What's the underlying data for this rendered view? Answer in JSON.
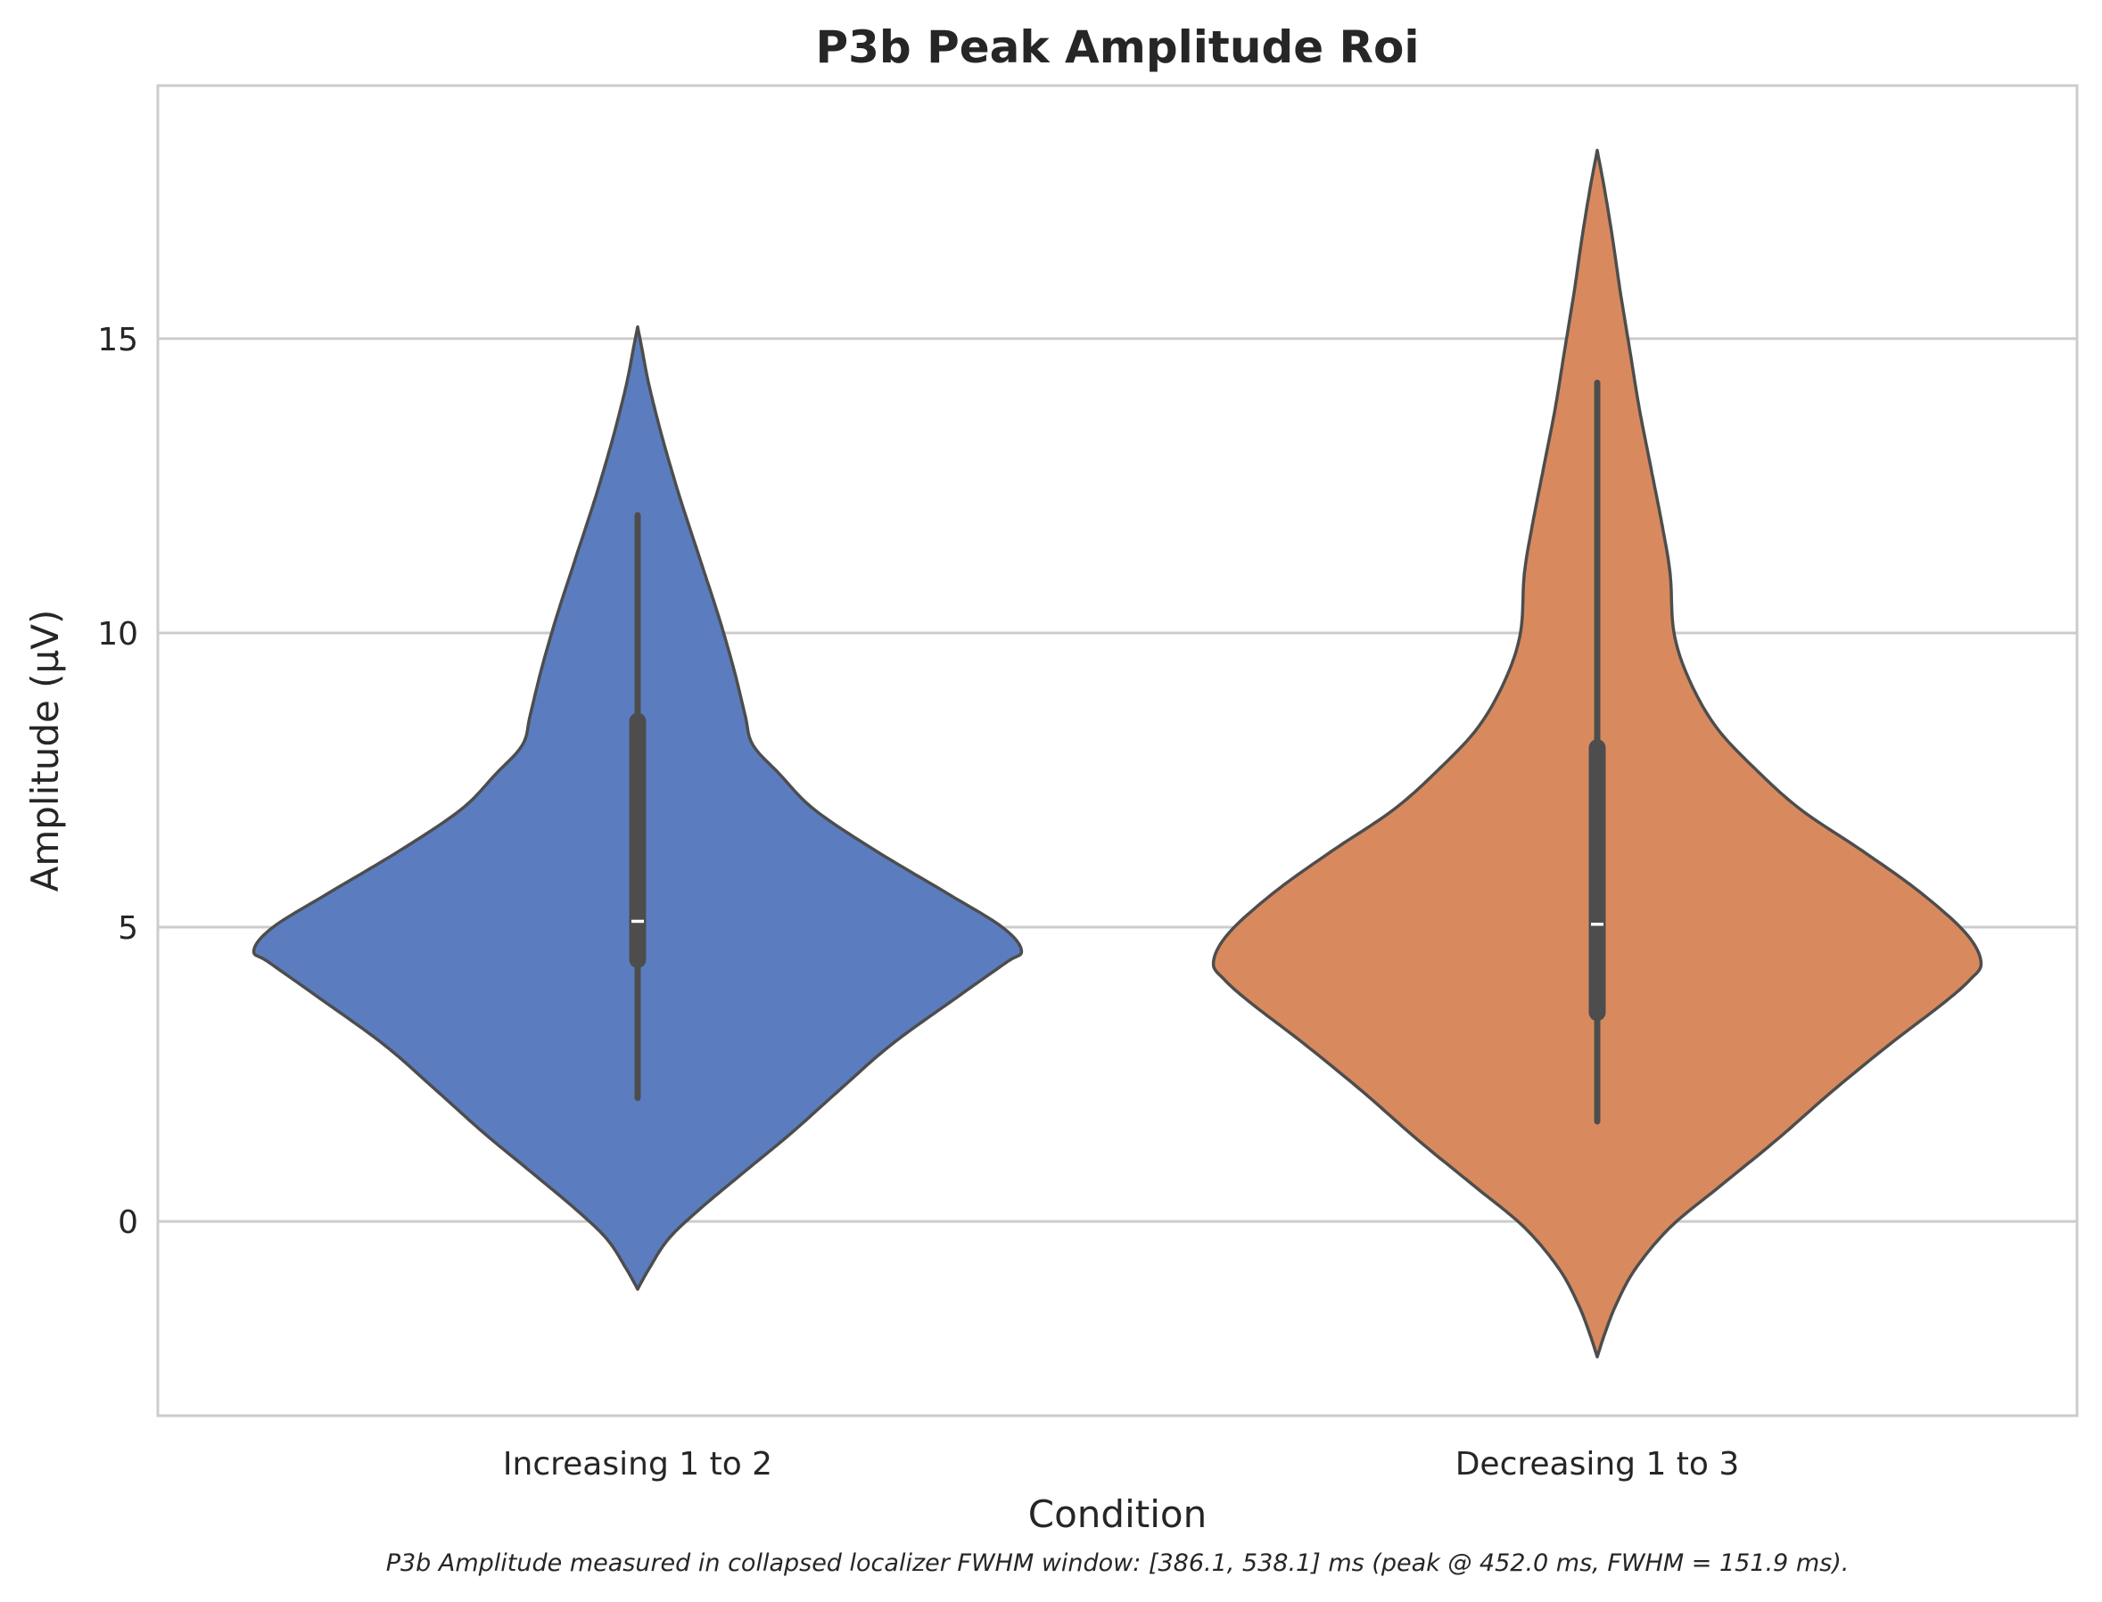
{
  "chart_data": {
    "type": "violin",
    "title": "P3b Peak Amplitude Roi",
    "xlabel": "Condition",
    "ylabel": "Amplitude (μV)",
    "ylim": [
      -3.3,
      19.3
    ],
    "yticks": [
      0,
      5,
      10,
      15
    ],
    "grid": true,
    "caption": "P3b Amplitude measured in collapsed localizer FWHM window: [386.1, 538.1] ms (peak @ 452.0 ms, FWHM = 151.9 ms).",
    "categories": [
      "Increasing 1 to 2",
      "Decreasing 1 to 3"
    ],
    "series": [
      {
        "category": "Increasing 1 to 2",
        "color": "#5b7dbf",
        "kde_range": [
          -1.15,
          15.2
        ],
        "density_profile": [
          [
            -1.15,
            0.0
          ],
          [
            -0.8,
            0.03
          ],
          [
            -0.3,
            0.08
          ],
          [
            0.2,
            0.16
          ],
          [
            0.8,
            0.27
          ],
          [
            1.5,
            0.4
          ],
          [
            2.2,
            0.52
          ],
          [
            3.0,
            0.66
          ],
          [
            3.8,
            0.83
          ],
          [
            4.4,
            0.96
          ],
          [
            4.6,
            1.0
          ],
          [
            5.0,
            0.95
          ],
          [
            5.6,
            0.8
          ],
          [
            6.3,
            0.62
          ],
          [
            7.0,
            0.46
          ],
          [
            7.6,
            0.37
          ],
          [
            8.1,
            0.3
          ],
          [
            8.6,
            0.28
          ],
          [
            9.4,
            0.25
          ],
          [
            10.3,
            0.21
          ],
          [
            11.3,
            0.16
          ],
          [
            12.3,
            0.11
          ],
          [
            13.3,
            0.065
          ],
          [
            14.2,
            0.03
          ],
          [
            14.8,
            0.012
          ],
          [
            15.2,
            0.0
          ]
        ],
        "whisker": [
          2.1,
          12.0
        ],
        "iqr": [
          4.45,
          8.5
        ],
        "median": 5.1
      },
      {
        "category": "Decreasing 1 to 3",
        "color": "#d88a5e",
        "kde_range": [
          -2.3,
          18.2
        ],
        "density_profile": [
          [
            -2.3,
            0.0
          ],
          [
            -1.9,
            0.02
          ],
          [
            -1.4,
            0.05
          ],
          [
            -0.8,
            0.1
          ],
          [
            -0.1,
            0.19
          ],
          [
            0.6,
            0.32
          ],
          [
            1.4,
            0.47
          ],
          [
            2.2,
            0.61
          ],
          [
            3.0,
            0.76
          ],
          [
            3.7,
            0.9
          ],
          [
            4.1,
            0.97
          ],
          [
            4.4,
            1.0
          ],
          [
            4.9,
            0.96
          ],
          [
            5.6,
            0.84
          ],
          [
            6.3,
            0.69
          ],
          [
            7.0,
            0.53
          ],
          [
            7.7,
            0.41
          ],
          [
            8.4,
            0.31
          ],
          [
            9.2,
            0.24
          ],
          [
            10.0,
            0.2
          ],
          [
            11.0,
            0.19
          ],
          [
            11.8,
            0.17
          ],
          [
            12.8,
            0.14
          ],
          [
            13.8,
            0.11
          ],
          [
            14.8,
            0.085
          ],
          [
            15.8,
            0.06
          ],
          [
            16.7,
            0.04
          ],
          [
            17.5,
            0.02
          ],
          [
            18.2,
            0.0
          ]
        ],
        "whisker": [
          1.7,
          14.25
        ],
        "iqr": [
          3.55,
          8.05
        ],
        "median": 5.05
      }
    ]
  }
}
